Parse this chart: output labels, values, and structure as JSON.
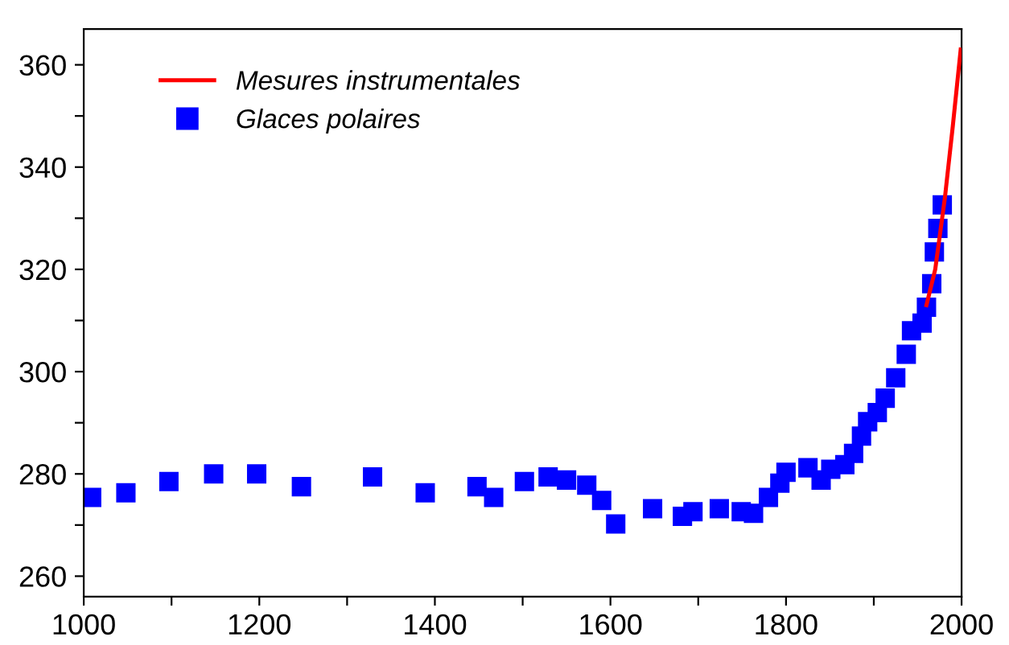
{
  "chart_data": {
    "type": "scatter",
    "marker": "square",
    "legend": "top left",
    "grid": false,
    "xlim": [
      1000,
      2000
    ],
    "ylim": [
      256,
      367
    ],
    "xticks": [
      1000,
      {
        "value": 1100,
        "label": null
      },
      1200,
      {
        "value": 1300,
        "label": null
      },
      1400,
      {
        "value": 1500,
        "label": null
      },
      1600,
      {
        "value": 1700,
        "label": null
      },
      1800,
      {
        "value": 1900,
        "label": null
      },
      2000
    ],
    "yticks": [
      260,
      {
        "value": 270,
        "label": null
      },
      280,
      {
        "value": 290,
        "label": null
      },
      300,
      {
        "value": 310,
        "label": null
      },
      320,
      {
        "value": 330,
        "label": null
      },
      340,
      {
        "value": 350,
        "label": null
      },
      360
    ],
    "series": [
      {
        "name": "Mesures instrumentales",
        "type": "line",
        "marker": "none",
        "color": "#ff0000",
        "x": [
          1960,
          1970,
          1981,
          1990,
          1999
        ],
        "values": [
          313,
          320,
          334,
          348,
          363
        ]
      },
      {
        "name": "Glaces polaires",
        "color": "#0000ff",
        "x": [
          1009,
          1048,
          1097,
          1148,
          1197,
          1248,
          1329,
          1389,
          1448,
          1467,
          1502,
          1529,
          1550,
          1573,
          1590,
          1606,
          1648,
          1682,
          1694,
          1724,
          1749,
          1763,
          1780,
          1793,
          1800,
          1825,
          1840,
          1851,
          1867,
          1877,
          1886,
          1893,
          1904,
          1913,
          1925,
          1937,
          1943,
          1955,
          1960,
          1966,
          1969,
          1973,
          1978
        ],
        "values": [
          275.4,
          276.3,
          278.5,
          280,
          280,
          277.5,
          279.4,
          276.3,
          277.5,
          275.4,
          278.5,
          279.4,
          278.8,
          277.8,
          274.8,
          270.2,
          273.2,
          271.7,
          272.6,
          273.2,
          272.6,
          272.3,
          275.4,
          278.2,
          280.3,
          281.2,
          278.8,
          280.9,
          281.8,
          284,
          287.4,
          290.2,
          292,
          294.8,
          298.8,
          303.4,
          308,
          309.5,
          312.6,
          317.2,
          323.4,
          328,
          332.6
        ]
      }
    ]
  }
}
